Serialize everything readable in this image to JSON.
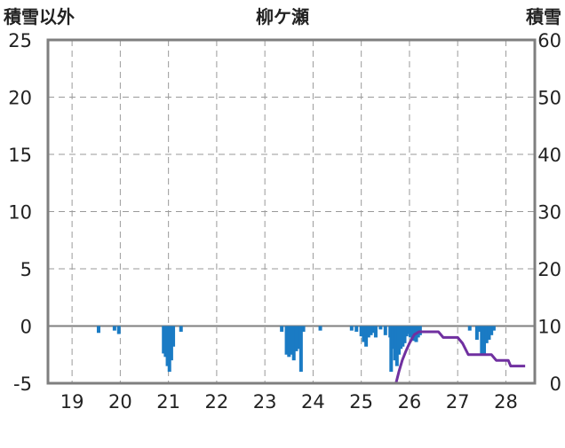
{
  "chart_data": {
    "type": "bar",
    "title": "柳ケ瀬",
    "ylabel_left": "積雪以外",
    "ylabel_right": "積雪",
    "x_ticks": [
      "19",
      "20",
      "21",
      "22",
      "23",
      "24",
      "25",
      "26",
      "27",
      "28"
    ],
    "xlim": [
      18.5,
      28.6
    ],
    "y_left": {
      "ticks": [
        "25",
        "20",
        "15",
        "10",
        "5",
        "0",
        "-5"
      ],
      "ylim": [
        -5,
        25
      ]
    },
    "y_right": {
      "ticks": [
        "60",
        "50",
        "40",
        "30",
        "20",
        "10",
        "0"
      ],
      "ylim": [
        0,
        60
      ]
    },
    "grid": true,
    "colors": {
      "bars": "#1a7bc4",
      "snow_line": "#7030a0",
      "frame": "#7f7f7f",
      "zero_line": "#7f7f7f"
    },
    "series": [
      {
        "axis": "left",
        "render": "bar",
        "x": [
          19.55,
          19.88,
          19.97,
          20.9,
          20.94,
          20.98,
          21.02,
          21.06,
          21.1,
          21.26,
          23.35,
          23.45,
          23.5,
          23.55,
          23.6,
          23.65,
          23.7,
          23.75,
          23.8,
          24.15,
          24.8,
          24.9,
          25.0,
          25.05,
          25.1,
          25.15,
          25.2,
          25.25,
          25.3,
          25.4,
          25.5,
          25.6,
          25.62,
          25.66,
          25.7,
          25.74,
          25.78,
          25.82,
          25.86,
          25.9,
          25.94,
          25.98,
          26.02,
          26.06,
          26.1,
          26.14,
          26.18,
          26.22,
          27.25,
          27.4,
          27.45,
          27.5,
          27.55,
          27.6,
          27.65,
          27.7,
          27.75
        ],
        "values": [
          -0.6,
          -0.4,
          -0.7,
          -2.4,
          -2.7,
          -3.5,
          -4.0,
          -3.0,
          -1.8,
          -0.5,
          -0.5,
          -2.5,
          -2.7,
          -2.5,
          -3.0,
          -2.2,
          -2.0,
          -4.0,
          -0.5,
          -0.4,
          -0.4,
          -0.5,
          -0.9,
          -1.4,
          -1.8,
          -1.0,
          -0.8,
          -0.6,
          -1.0,
          -0.3,
          -0.8,
          -1.0,
          -4.0,
          -2.0,
          -3.0,
          -3.5,
          -2.5,
          -2.0,
          -1.8,
          -1.5,
          -0.9,
          -0.7,
          -1.0,
          -1.2,
          -1.3,
          -1.4,
          -1.0,
          -0.8,
          -0.4,
          -1.2,
          -0.5,
          -2.5,
          -2.5,
          -1.5,
          -1.2,
          -0.8,
          -0.4
        ]
      },
      {
        "axis": "right",
        "render": "line",
        "x": [
          18.5,
          25.72,
          25.78,
          25.85,
          25.92,
          26.0,
          26.1,
          26.2,
          26.6,
          26.7,
          27.0,
          27.1,
          27.22,
          27.3,
          27.7,
          27.8,
          28.05,
          28.1,
          28.4
        ],
        "values": [
          0.0,
          0.0,
          2.0,
          4.0,
          5.5,
          7.0,
          8.5,
          9.0,
          9.0,
          8.0,
          8.0,
          7.0,
          5.0,
          5.0,
          5.0,
          4.0,
          4.0,
          3.0,
          3.0
        ]
      }
    ]
  }
}
